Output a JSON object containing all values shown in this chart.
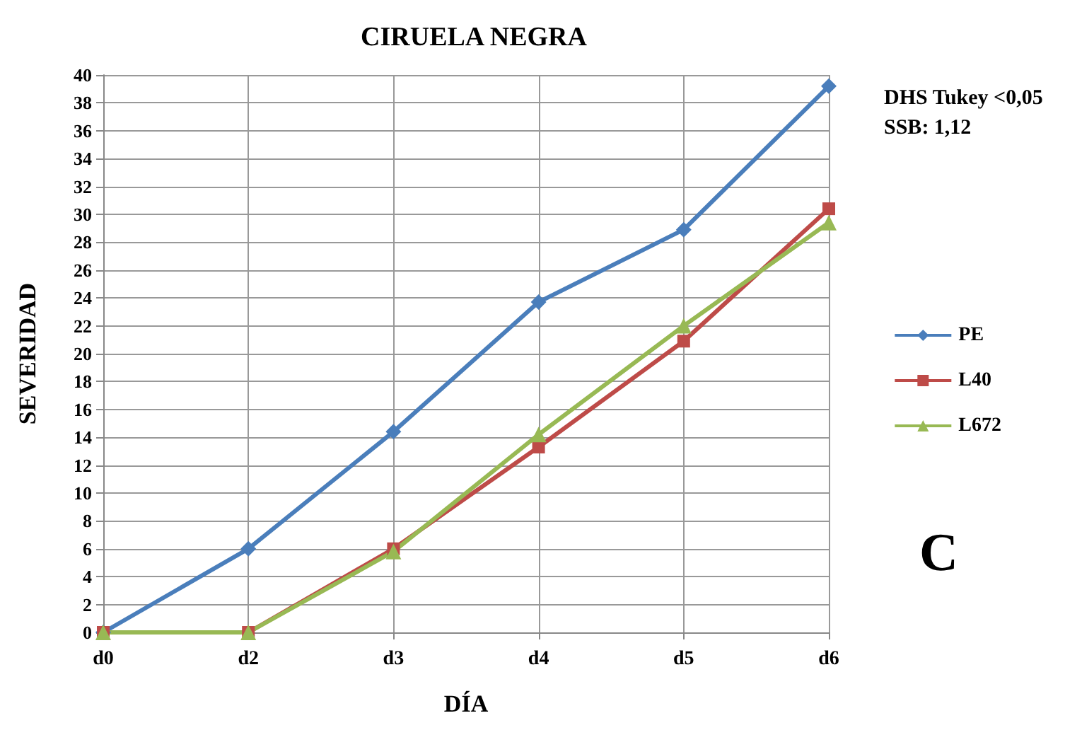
{
  "chart_data": {
    "type": "line",
    "title": "CIRUELA NEGRA",
    "xlabel": "DÍA",
    "ylabel": "SEVERIDAD",
    "categories": [
      "d0",
      "d2",
      "d3",
      "d4",
      "d5",
      "d6"
    ],
    "series": [
      {
        "name": "PE",
        "color": "#4a7ebb",
        "marker": "diamond",
        "values": [
          0,
          6,
          14.4,
          23.7,
          28.9,
          39.2
        ]
      },
      {
        "name": "L40",
        "color": "#be4b48",
        "marker": "square",
        "values": [
          0,
          0,
          6,
          13.3,
          20.9,
          30.4
        ]
      },
      {
        "name": "L672",
        "color": "#98b954",
        "marker": "triangle",
        "values": [
          0,
          0,
          5.8,
          14.2,
          22,
          29.4
        ]
      }
    ],
    "ylim": [
      0,
      40
    ],
    "yticks": [
      0,
      2,
      4,
      6,
      8,
      10,
      12,
      14,
      16,
      18,
      20,
      22,
      24,
      26,
      28,
      30,
      32,
      34,
      36,
      38,
      40
    ],
    "grid": true,
    "legend": "right",
    "line_style": "solid",
    "annotations": [
      "DHS Tukey <0,05",
      "SSB: 1,12",
      "C"
    ]
  }
}
